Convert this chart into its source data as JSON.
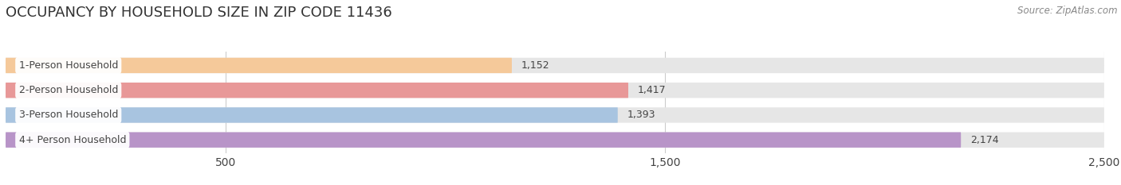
{
  "title": "OCCUPANCY BY HOUSEHOLD SIZE IN ZIP CODE 11436",
  "source": "Source: ZipAtlas.com",
  "categories": [
    "1-Person Household",
    "2-Person Household",
    "3-Person Household",
    "4+ Person Household"
  ],
  "values": [
    1152,
    1417,
    1393,
    2174
  ],
  "bar_colors": [
    "#f5c99a",
    "#e89898",
    "#a8c4e0",
    "#b894c8"
  ],
  "background_color": "#ffffff",
  "bar_bg_color": "#e6e6e6",
  "label_bg_color": "#ffffff",
  "xlim_min": 0,
  "xlim_max": 2500,
  "xticks": [
    500,
    1500,
    2500
  ],
  "bar_height": 0.62,
  "value_labels": [
    "1,152",
    "1,417",
    "1,393",
    "2,174"
  ],
  "title_fontsize": 13,
  "source_fontsize": 8.5,
  "tick_fontsize": 10,
  "label_fontsize": 9,
  "value_fontsize": 9,
  "grid_color": "#cccccc",
  "text_color": "#444444",
  "title_color": "#333333",
  "source_color": "#888888"
}
